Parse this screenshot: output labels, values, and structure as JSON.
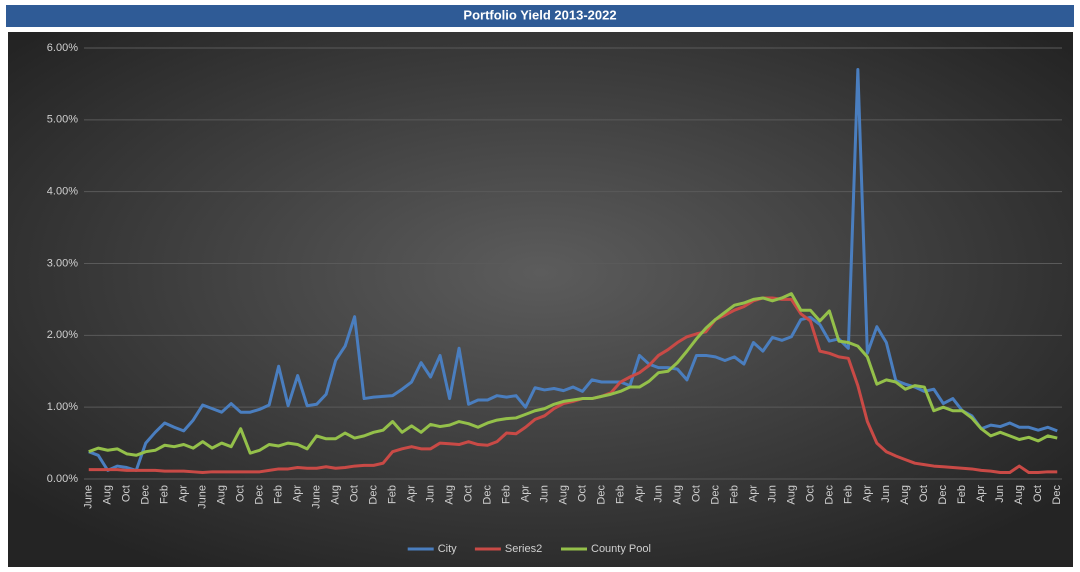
{
  "chart_data": {
    "type": "line",
    "title": "Portfolio Yield 2013-2022",
    "categories": [
      "June",
      null,
      "Aug",
      null,
      "Oct",
      null,
      "Dec",
      null,
      "Feb",
      null,
      "Apr",
      null,
      "June",
      null,
      "Aug",
      null,
      "Oct",
      null,
      "Dec",
      null,
      "Feb",
      null,
      "Apr",
      null,
      "June",
      null,
      "Aug",
      null,
      "Oct",
      null,
      "Dec",
      null,
      "Feb",
      null,
      "Apr",
      null,
      "Jun",
      null,
      "Aug",
      null,
      "Oct",
      null,
      "Dec",
      null,
      "Feb",
      null,
      "Apr",
      null,
      "Jun",
      null,
      "Aug",
      null,
      "Oct",
      null,
      "Dec",
      null,
      "Feb",
      null,
      "Apr",
      null,
      "Jun",
      null,
      "Aug",
      null,
      "Oct",
      null,
      "Dec",
      null,
      "Feb",
      null,
      "Apr",
      null,
      "Jun",
      null,
      "Aug",
      null,
      "Oct",
      null,
      "Dec",
      null,
      "Feb",
      null,
      "Apr",
      null,
      "Jun",
      null,
      "Aug",
      null,
      "Oct",
      null,
      "Dec",
      null,
      "Feb",
      null,
      "Apr",
      null,
      "Jun",
      null,
      "Aug",
      null,
      "Oct",
      null,
      "Dec"
    ],
    "series": [
      {
        "name": "City",
        "color": "#4a7ebf",
        "values": [
          0.38,
          0.33,
          0.12,
          0.18,
          0.16,
          0.12,
          0.5,
          0.65,
          0.78,
          0.72,
          0.67,
          0.82,
          1.03,
          0.98,
          0.93,
          1.05,
          0.93,
          0.93,
          0.97,
          1.03,
          1.57,
          1.02,
          1.44,
          1.02,
          1.04,
          1.18,
          1.65,
          1.85,
          2.26,
          1.12,
          1.14,
          1.15,
          1.16,
          1.25,
          1.35,
          1.62,
          1.42,
          1.72,
          1.12,
          1.82,
          1.04,
          1.1,
          1.1,
          1.16,
          1.14,
          1.16,
          1.0,
          1.27,
          1.24,
          1.26,
          1.23,
          1.28,
          1.22,
          1.38,
          1.35,
          1.35,
          1.35,
          1.3,
          1.72,
          1.6,
          1.55,
          1.55,
          1.53,
          1.38,
          1.72,
          1.72,
          1.7,
          1.65,
          1.7,
          1.6,
          1.9,
          1.78,
          1.97,
          1.93,
          1.98,
          2.22,
          2.25,
          2.15,
          1.92,
          1.95,
          1.82,
          5.7,
          1.75,
          2.12,
          1.9,
          1.37,
          1.32,
          1.28,
          1.22,
          1.25,
          1.05,
          1.12,
          0.95,
          0.88,
          0.7,
          0.75,
          0.73,
          0.78,
          0.72,
          0.72,
          0.68,
          0.72,
          0.67
        ]
      },
      {
        "name": "Series2",
        "color": "#c94a46",
        "values": [
          0.13,
          0.13,
          0.13,
          0.13,
          0.12,
          0.12,
          0.12,
          0.12,
          0.11,
          0.11,
          0.11,
          0.1,
          0.09,
          0.1,
          0.1,
          0.1,
          0.1,
          0.1,
          0.1,
          0.12,
          0.14,
          0.14,
          0.16,
          0.15,
          0.15,
          0.17,
          0.15,
          0.16,
          0.18,
          0.19,
          0.19,
          0.22,
          0.38,
          0.42,
          0.45,
          0.42,
          0.42,
          0.5,
          0.49,
          0.48,
          0.52,
          0.48,
          0.47,
          0.52,
          0.64,
          0.63,
          0.72,
          0.83,
          0.88,
          0.98,
          1.05,
          1.08,
          1.12,
          1.12,
          1.15,
          1.2,
          1.35,
          1.42,
          1.48,
          1.58,
          1.72,
          1.8,
          1.9,
          1.98,
          2.02,
          2.05,
          2.22,
          2.28,
          2.35,
          2.4,
          2.48,
          2.52,
          2.52,
          2.5,
          2.5,
          2.3,
          2.2,
          1.78,
          1.75,
          1.7,
          1.68,
          1.3,
          0.8,
          0.5,
          0.38,
          0.32,
          0.27,
          0.22,
          0.2,
          0.18,
          0.17,
          0.16,
          0.15,
          0.14,
          0.12,
          0.11,
          0.09,
          0.09,
          0.18,
          0.09,
          0.09,
          0.1,
          0.1
        ]
      },
      {
        "name": "County Pool",
        "color": "#94c04a",
        "values": [
          0.38,
          0.43,
          0.4,
          0.42,
          0.35,
          0.33,
          0.38,
          0.4,
          0.47,
          0.45,
          0.48,
          0.43,
          0.52,
          0.43,
          0.5,
          0.45,
          0.7,
          0.36,
          0.4,
          0.48,
          0.46,
          0.5,
          0.48,
          0.42,
          0.6,
          0.56,
          0.56,
          0.64,
          0.57,
          0.6,
          0.65,
          0.68,
          0.8,
          0.65,
          0.74,
          0.65,
          0.76,
          0.73,
          0.75,
          0.8,
          0.77,
          0.72,
          0.78,
          0.82,
          0.84,
          0.85,
          0.9,
          0.95,
          0.98,
          1.04,
          1.08,
          1.1,
          1.12,
          1.12,
          1.15,
          1.18,
          1.22,
          1.28,
          1.28,
          1.36,
          1.48,
          1.5,
          1.62,
          1.78,
          1.95,
          2.1,
          2.22,
          2.32,
          2.42,
          2.45,
          2.5,
          2.52,
          2.48,
          2.52,
          2.58,
          2.35,
          2.35,
          2.2,
          2.34,
          1.92,
          1.9,
          1.85,
          1.7,
          1.32,
          1.38,
          1.35,
          1.25,
          1.3,
          1.28,
          0.95,
          1.0,
          0.95,
          0.95,
          0.85,
          0.7,
          0.6,
          0.65,
          0.6,
          0.55,
          0.58,
          0.53,
          0.6,
          0.57
        ]
      }
    ],
    "ylim": [
      0,
      6
    ],
    "yticks": [
      {
        "value": 0,
        "label": "0.00%"
      },
      {
        "value": 1,
        "label": "1.00%"
      },
      {
        "value": 2,
        "label": "2.00%"
      },
      {
        "value": 3,
        "label": "3.00%"
      },
      {
        "value": 4,
        "label": "4.00%"
      },
      {
        "value": 5,
        "label": "5.00%"
      },
      {
        "value": 6,
        "label": "6.00%"
      }
    ],
    "grid": true,
    "legend": "bottom"
  }
}
